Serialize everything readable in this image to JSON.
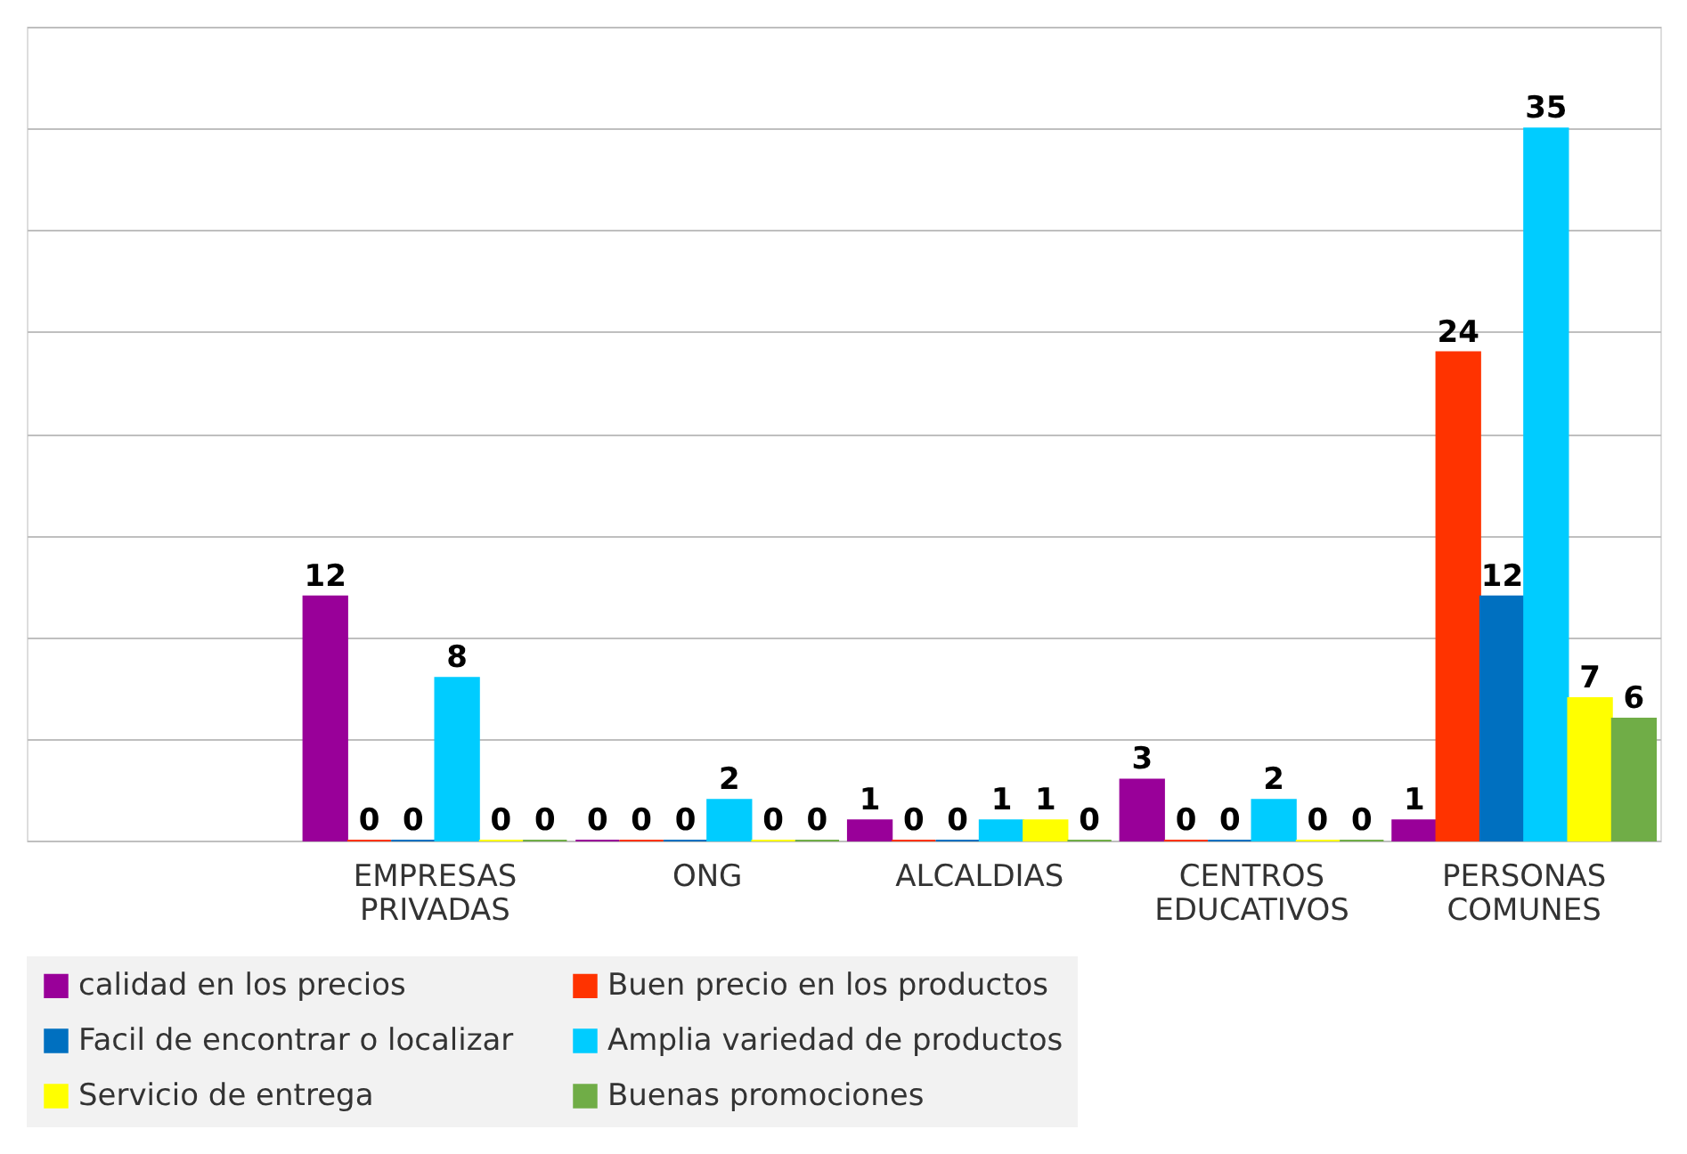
{
  "chart_data": {
    "type": "bar",
    "categories": [
      null,
      "EMPRESAS PRIVADAS",
      "ONG",
      "ALCALDIAS",
      "CENTROS EDUCATIVOS",
      "PERSONAS COMUNES"
    ],
    "series": [
      {
        "name": "calidad en los precios",
        "color": "#990099",
        "values": [
          null,
          12,
          0,
          1,
          3,
          1
        ]
      },
      {
        "name": "Buen precio en los productos",
        "color": "#ff3300",
        "values": [
          null,
          0,
          0,
          0,
          0,
          24
        ]
      },
      {
        "name": "Facil de encontrar o localizar",
        "color": "#0070c0",
        "values": [
          null,
          0,
          0,
          0,
          0,
          12
        ]
      },
      {
        "name": "Amplia variedad de productos",
        "color": "#00ccff",
        "values": [
          null,
          8,
          2,
          1,
          2,
          35
        ]
      },
      {
        "name": "Servicio de entrega",
        "color": "#ffff00",
        "values": [
          null,
          0,
          0,
          1,
          0,
          7
        ]
      },
      {
        "name": "Buenas promociones",
        "color": "#70ad47",
        "values": [
          null,
          0,
          0,
          0,
          0,
          6
        ]
      }
    ],
    "ylim": [
      0,
      40
    ],
    "yticks": [
      {
        "value": 0,
        "label": null
      },
      {
        "value": 5,
        "label": null
      },
      {
        "value": 10,
        "label": null
      },
      {
        "value": 15,
        "label": null
      },
      {
        "value": 20,
        "label": null
      },
      {
        "value": 25,
        "label": null
      },
      {
        "value": 30,
        "label": null
      },
      {
        "value": 35,
        "label": null
      },
      {
        "value": 40,
        "label": null
      }
    ],
    "tick_labels": "x",
    "grid": "y",
    "data_labels": true,
    "legend": "bottom"
  }
}
